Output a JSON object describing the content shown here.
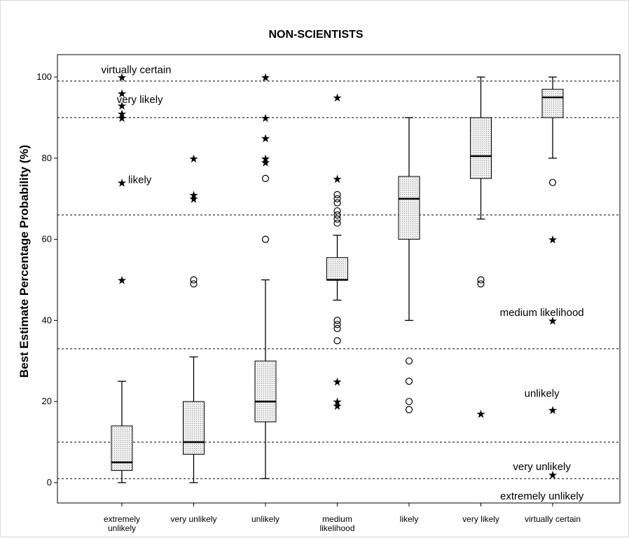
{
  "chart_data": {
    "type": "boxplot",
    "title": "NON-SCIENTISTS",
    "xlabel": "",
    "ylabel": "Best Estimate Percentage Probability (%)",
    "ylim": [
      -5,
      106
    ],
    "yticks": [
      0,
      20,
      40,
      60,
      80,
      100
    ],
    "grid": false,
    "categories": [
      "extremely unlikely",
      "very unlikely",
      "unlikely",
      "medium likelihood",
      "likely",
      "very likely",
      "virtually certain"
    ],
    "category_labels": [
      [
        "extremely",
        "unlikely"
      ],
      [
        "very unlikely"
      ],
      [
        "unlikely"
      ],
      [
        "medium",
        "likelihood"
      ],
      [
        "likely"
      ],
      [
        "very likely"
      ],
      [
        "virtually certain"
      ]
    ],
    "boxes": [
      {
        "whisker_low": 0,
        "q1": 3,
        "median": 5,
        "q3": 14,
        "whisker_high": 25,
        "outliers": [],
        "extremes": [
          50,
          74,
          90,
          91,
          93,
          96,
          100
        ]
      },
      {
        "whisker_low": 0,
        "q1": 7,
        "median": 10,
        "q3": 20,
        "whisker_high": 31,
        "outliers": [
          49,
          50
        ],
        "extremes": [
          70,
          71,
          80
        ]
      },
      {
        "whisker_low": 1,
        "q1": 15,
        "median": 20,
        "q3": 30,
        "whisker_high": 50,
        "outliers": [
          60,
          75
        ],
        "extremes": [
          79,
          80,
          85,
          90,
          100
        ]
      },
      {
        "whisker_low": 45,
        "q1": 50,
        "median": 50,
        "q3": 55.5,
        "whisker_high": 61,
        "outliers": [
          35,
          38,
          39,
          40,
          64,
          65,
          66,
          67,
          69,
          70,
          71
        ],
        "extremes": [
          19,
          20,
          25,
          75,
          95
        ]
      },
      {
        "whisker_low": 40,
        "q1": 60,
        "median": 70,
        "q3": 75.5,
        "whisker_high": 90,
        "outliers": [
          18,
          20,
          25,
          30
        ],
        "extremes": []
      },
      {
        "whisker_low": 65,
        "q1": 75,
        "median": 80.5,
        "q3": 90,
        "whisker_high": 100,
        "outliers": [
          49,
          50
        ],
        "extremes": [
          17
        ]
      },
      {
        "whisker_low": 80,
        "q1": 90,
        "median": 95,
        "q3": 97,
        "whisker_high": 100,
        "outliers": [
          74
        ],
        "extremes": [
          2,
          18,
          40,
          60
        ]
      }
    ],
    "reference_lines": [
      1,
      10,
      33,
      66,
      90,
      99
    ],
    "band_labels": [
      {
        "text": "virtually certain",
        "cat": 0.2,
        "y": 101.8
      },
      {
        "text": "very likely",
        "cat": 0.25,
        "y": 94.5
      },
      {
        "text": "likely",
        "cat": 0.25,
        "y": 74.7
      },
      {
        "text": "medium likelihood",
        "cat": 5.85,
        "y": 42
      },
      {
        "text": "unlikely",
        "cat": 5.85,
        "y": 22
      },
      {
        "text": "very unlikely",
        "cat": 5.85,
        "y": 4
      },
      {
        "text": "extremely unlikely",
        "cat": 5.85,
        "y": -3.3
      }
    ],
    "colors": {
      "box_fill": "#ededed",
      "box_dots": "#8c8c8c",
      "line": "#000000",
      "reference": "#000000"
    }
  }
}
